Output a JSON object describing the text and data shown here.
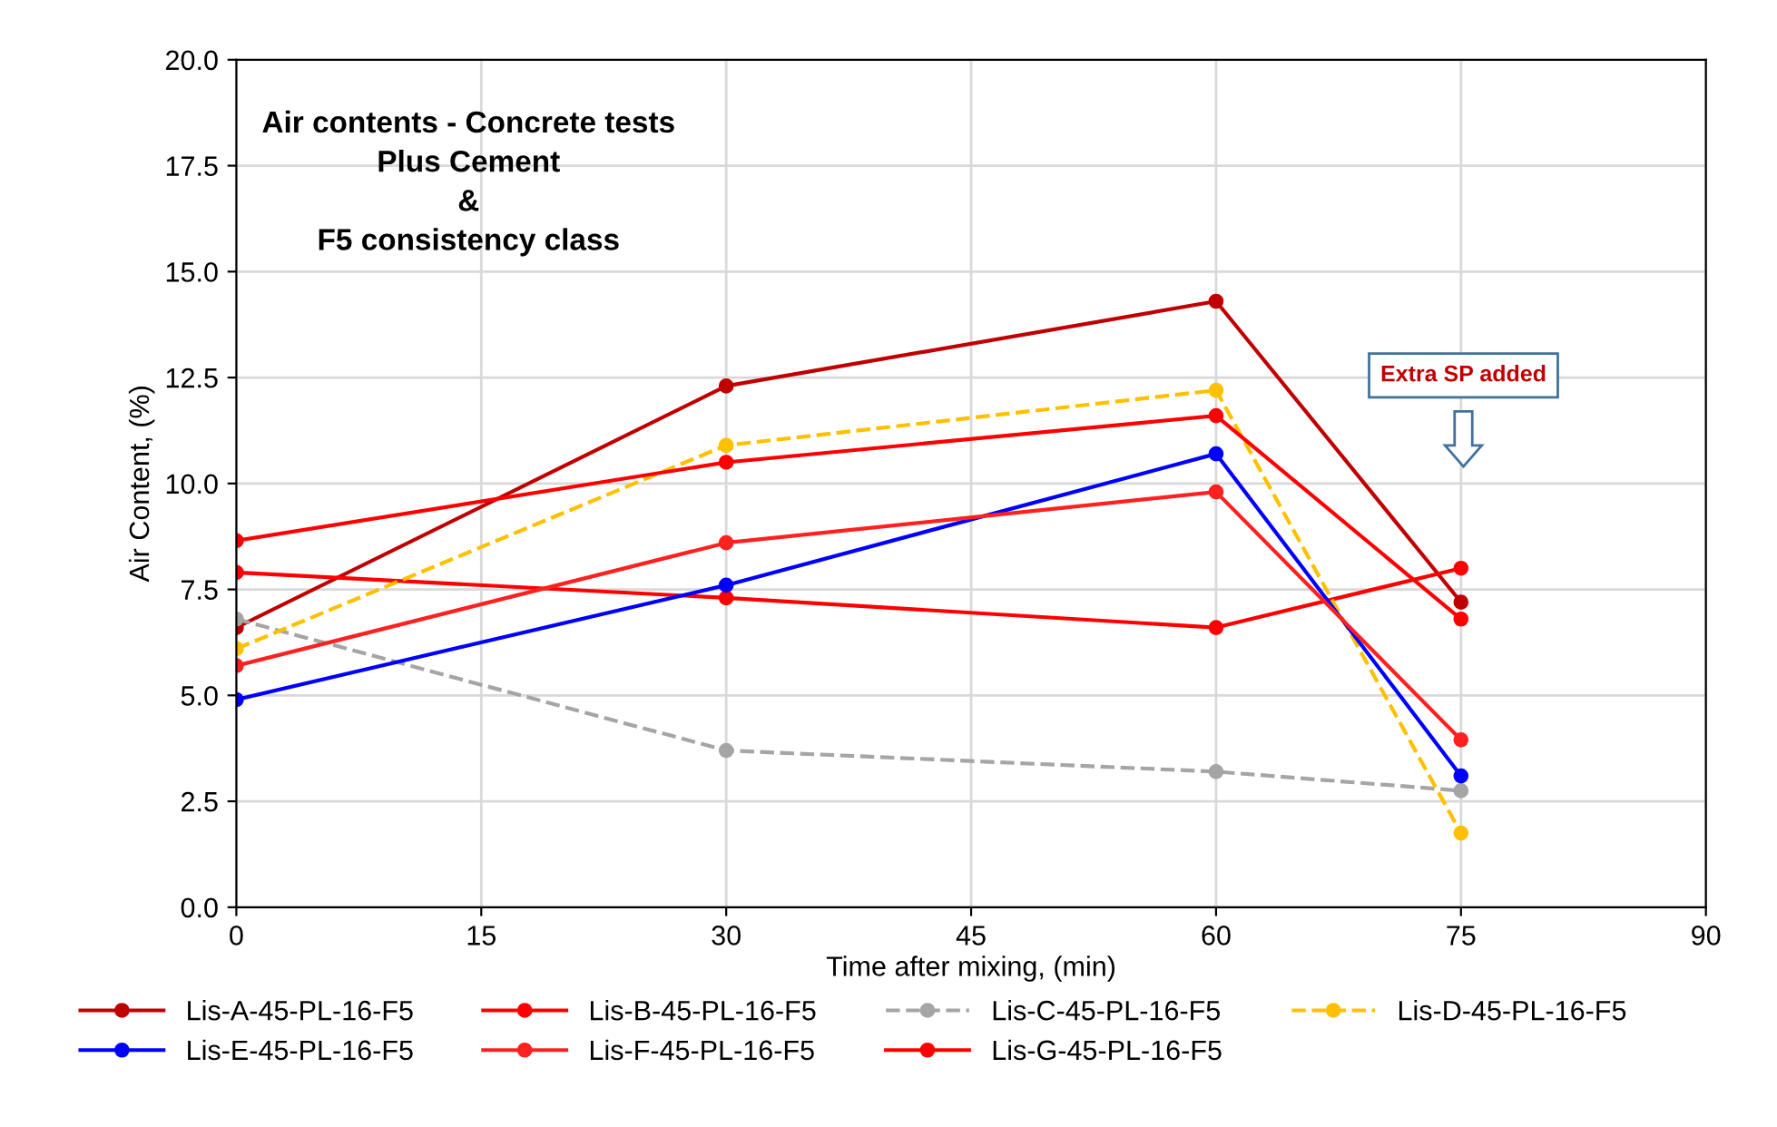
{
  "chart_data": {
    "type": "line",
    "title": "Air contents - Concrete tests\nPlus Cement\n&\nF5 consistency class",
    "xlabel": "Time after mixing, (min)",
    "ylabel": "Air Content, (%)",
    "x": [
      0,
      30,
      60,
      75
    ],
    "series": [
      {
        "name": "Lis-A-45-PL-16-F5",
        "color": "#c00000",
        "values": [
          6.6,
          12.3,
          14.3,
          7.2
        ]
      },
      {
        "name": "Lis-B-45-PL-16-F5",
        "color": "#ff0000",
        "values": [
          7.9,
          7.3,
          6.6,
          8.0
        ]
      },
      {
        "name": "Lis-C-45-PL-16-F5",
        "color": "#a5a5a5",
        "values": [
          6.8,
          3.7,
          3.2,
          2.75
        ],
        "line_style": "dashed"
      },
      {
        "name": "Lis-D-45-PL-16-F5",
        "color": "#ffc000",
        "values": [
          6.1,
          10.9,
          12.2,
          1.75
        ],
        "line_style": "dashed"
      },
      {
        "name": "Lis-E-45-PL-16-F5",
        "color": "#0000ff",
        "values": [
          4.9,
          7.6,
          10.7,
          3.1
        ]
      },
      {
        "name": "Lis-F-45-PL-16-F5",
        "color": "#ff2020",
        "values": [
          5.7,
          8.6,
          9.8,
          3.95
        ]
      },
      {
        "name": "Lis-G-45-PL-16-F5",
        "color": "#ff0000",
        "values": [
          8.65,
          10.5,
          11.6,
          6.8
        ]
      }
    ],
    "xlim": [
      0,
      90
    ],
    "xticks": [
      0,
      15,
      30,
      45,
      60,
      75,
      90
    ],
    "ylim": [
      0,
      20
    ],
    "yticks": [
      {
        "value": 0,
        "label": "0.0"
      },
      2.5,
      {
        "value": 5,
        "label": "5.0"
      },
      7.5,
      {
        "value": 10,
        "label": "10.0"
      },
      12.5,
      {
        "value": 15,
        "label": "15.0"
      },
      17.5,
      {
        "value": 20,
        "label": "20.0"
      }
    ],
    "annotations": [
      "Extra SP added"
    ],
    "grid": true,
    "legend": "bottom",
    "marker": "circle",
    "line_style": "solid"
  }
}
